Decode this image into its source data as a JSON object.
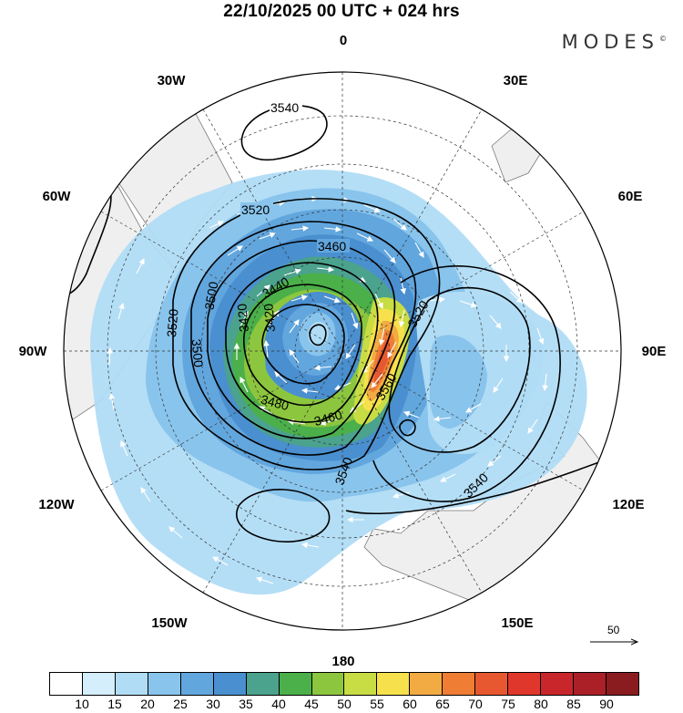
{
  "title": "22/10/2025  00 UTC  + 024 hrs",
  "brand": "MODES",
  "brand_mark": "©",
  "longitude_labels": {
    "lon_0": "0",
    "lon_30e": "30E",
    "lon_60e": "60E",
    "lon_90e": "90E",
    "lon_120e": "120E",
    "lon_150e": "150E",
    "lon_180": "180",
    "lon_150w": "150W",
    "lon_120w": "120W",
    "lon_90w": "90W",
    "lon_60w": "60W",
    "lon_30w": "30W"
  },
  "contour_labels": [
    "3540",
    "3520",
    "3460",
    "3440",
    "3500",
    "3520",
    "3500",
    "3420",
    "3420",
    "3480",
    "3460",
    "3520",
    "3560",
    "3540",
    "3540"
  ],
  "reference_vector": {
    "value": "50"
  },
  "colorbar": {
    "colors": [
      "#ffffff",
      "#d4eefb",
      "#b0dcf5",
      "#89c4ec",
      "#62a6de",
      "#4a8fcf",
      "#4ba28d",
      "#4bb04a",
      "#8cc63e",
      "#c8dc44",
      "#f6e14c",
      "#f2ab43",
      "#ef7d34",
      "#e85830",
      "#df372c",
      "#c8262b",
      "#ab1f27",
      "#8a1b1f"
    ],
    "tick_labels": [
      "10",
      "15",
      "20",
      "25",
      "30",
      "35",
      "40",
      "45",
      "50",
      "55",
      "60",
      "65",
      "70",
      "75",
      "80",
      "85",
      "90"
    ]
  },
  "colors": {
    "land": "#efefef",
    "coast": "#7a7a7a",
    "grid": "#333333",
    "contour": "#000000"
  }
}
